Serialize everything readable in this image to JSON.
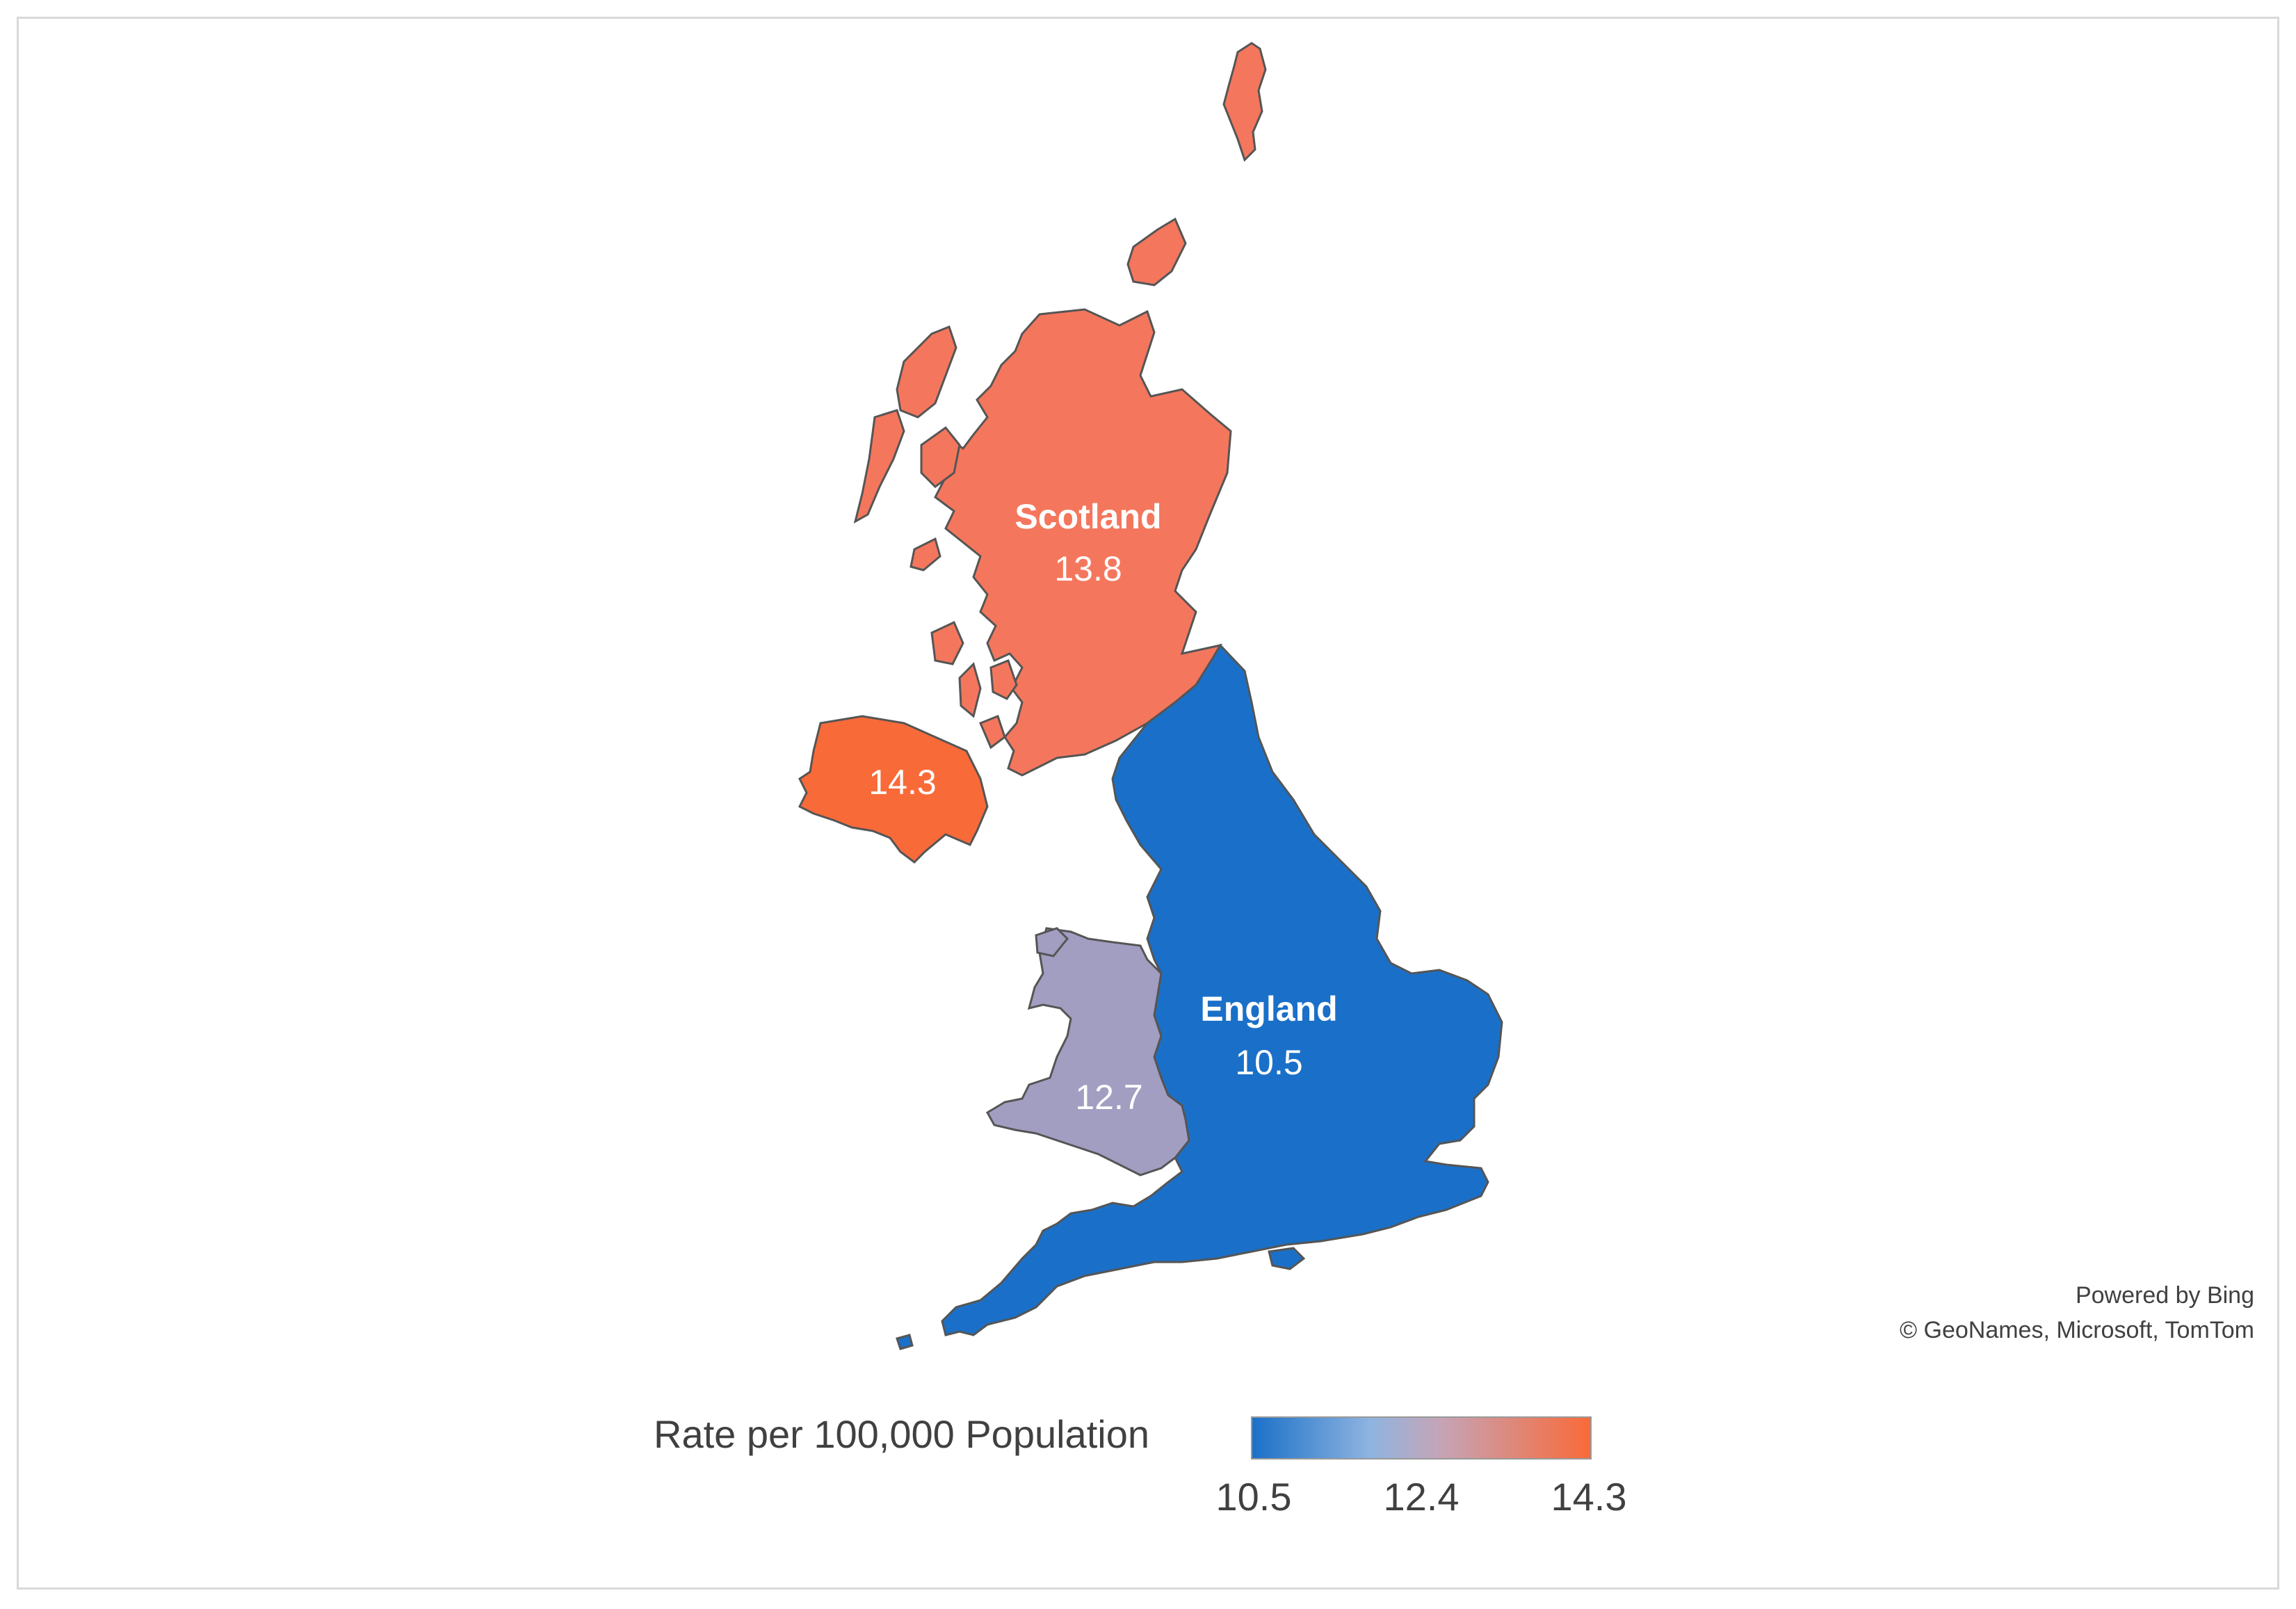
{
  "map": {
    "regions": [
      {
        "id": "scotland",
        "name": "Scotland",
        "value": "13.8",
        "color": "#f4775d"
      },
      {
        "id": "northern-ireland",
        "name": "",
        "value": "14.3",
        "color": "#f96a39"
      },
      {
        "id": "england",
        "name": "England",
        "value": "10.5",
        "color": "#1a70c8"
      },
      {
        "id": "wales",
        "name": "",
        "value": "12.7",
        "color": "#a29ec2"
      }
    ],
    "attribution": {
      "line1": "Powered by Bing",
      "line2": "© GeoNames, Microsoft, TomTom"
    },
    "legend": {
      "title": "Rate per 100,000 Population",
      "min_color": "#1a70c8",
      "mid_color": "#93b6e0",
      "max_color": "#f96a39",
      "ticks": [
        "10.5",
        "12.4",
        "14.3"
      ]
    },
    "border_color": "#555555"
  }
}
